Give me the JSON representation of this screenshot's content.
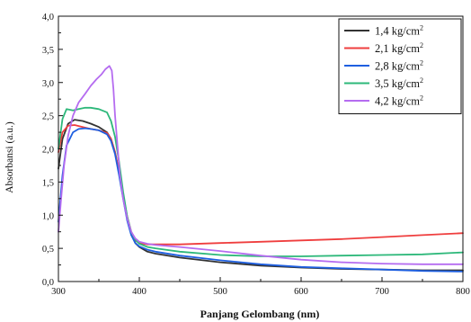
{
  "chart_data": {
    "type": "line",
    "xlabel": "Panjang Gelombang (nm)",
    "ylabel": "Absorbansi (a.u.)",
    "xlim": [
      300,
      800
    ],
    "ylim": [
      0,
      4.0
    ],
    "x_ticks": [
      "300",
      "400",
      "500",
      "600",
      "700",
      "800"
    ],
    "y_ticks": [
      "0,0",
      "0,5",
      "1,0",
      "1,5",
      "2,0",
      "2,5",
      "3,0",
      "3,5",
      "4,0"
    ],
    "legend_position": "top-right",
    "grid": false,
    "series": [
      {
        "name": "1,4 kg/cm",
        "name_sup": "2",
        "color": "#333333",
        "x": [
          300,
          305,
          312,
          320,
          330,
          340,
          350,
          360,
          365,
          370,
          375,
          380,
          385,
          390,
          395,
          400,
          410,
          420,
          450,
          500,
          550,
          600,
          650,
          700,
          750,
          800
        ],
        "y": [
          1.7,
          2.15,
          2.38,
          2.44,
          2.42,
          2.38,
          2.33,
          2.25,
          2.15,
          1.95,
          1.65,
          1.3,
          0.95,
          0.72,
          0.58,
          0.52,
          0.45,
          0.42,
          0.36,
          0.29,
          0.24,
          0.21,
          0.19,
          0.18,
          0.17,
          0.17
        ]
      },
      {
        "name": "2,1 kg/cm",
        "name_sup": "2",
        "color": "#ef3e3e",
        "x": [
          300,
          305,
          312,
          320,
          330,
          340,
          350,
          360,
          365,
          370,
          375,
          380,
          385,
          390,
          395,
          400,
          410,
          420,
          450,
          500,
          550,
          600,
          650,
          700,
          750,
          800
        ],
        "y": [
          1.95,
          2.25,
          2.35,
          2.36,
          2.33,
          2.3,
          2.28,
          2.24,
          2.15,
          1.95,
          1.65,
          1.3,
          0.98,
          0.75,
          0.62,
          0.58,
          0.56,
          0.56,
          0.56,
          0.58,
          0.6,
          0.62,
          0.64,
          0.67,
          0.7,
          0.73
        ]
      },
      {
        "name": "2,8 kg/cm",
        "name_sup": "2",
        "color": "#1e5fe0",
        "x": [
          300,
          305,
          310,
          318,
          325,
          333,
          340,
          350,
          360,
          365,
          370,
          375,
          380,
          385,
          390,
          395,
          400,
          410,
          420,
          450,
          500,
          550,
          600,
          650,
          700,
          750,
          800
        ],
        "y": [
          0.9,
          1.6,
          2.05,
          2.25,
          2.3,
          2.31,
          2.3,
          2.28,
          2.22,
          2.12,
          1.92,
          1.6,
          1.25,
          0.92,
          0.7,
          0.58,
          0.53,
          0.48,
          0.45,
          0.39,
          0.32,
          0.26,
          0.22,
          0.2,
          0.18,
          0.16,
          0.15
        ]
      },
      {
        "name": "3,5 kg/cm",
        "name_sup": "2",
        "color": "#2db87a",
        "x": [
          300,
          305,
          310,
          318,
          325,
          333,
          340,
          350,
          360,
          365,
          370,
          375,
          380,
          385,
          390,
          395,
          400,
          410,
          420,
          450,
          500,
          550,
          600,
          650,
          700,
          750,
          800
        ],
        "y": [
          2.0,
          2.45,
          2.6,
          2.58,
          2.6,
          2.62,
          2.62,
          2.6,
          2.55,
          2.42,
          2.18,
          1.8,
          1.35,
          0.98,
          0.75,
          0.63,
          0.57,
          0.52,
          0.5,
          0.45,
          0.4,
          0.38,
          0.38,
          0.39,
          0.4,
          0.41,
          0.44
        ]
      },
      {
        "name": "4,2 kg/cm",
        "name_sup": "2",
        "color": "#b56cf0",
        "x": [
          300,
          303,
          307,
          312,
          318,
          325,
          333,
          340,
          347,
          353,
          358,
          363,
          366,
          368,
          370,
          373,
          376,
          380,
          385,
          390,
          395,
          400,
          410,
          420,
          450,
          500,
          550,
          600,
          650,
          700,
          750,
          800
        ],
        "y": [
          0.75,
          1.2,
          1.75,
          2.2,
          2.5,
          2.7,
          2.83,
          2.95,
          3.05,
          3.12,
          3.2,
          3.25,
          3.18,
          2.9,
          2.5,
          2.05,
          1.6,
          1.25,
          0.95,
          0.75,
          0.65,
          0.6,
          0.57,
          0.55,
          0.52,
          0.46,
          0.39,
          0.33,
          0.29,
          0.27,
          0.26,
          0.26
        ]
      }
    ]
  }
}
